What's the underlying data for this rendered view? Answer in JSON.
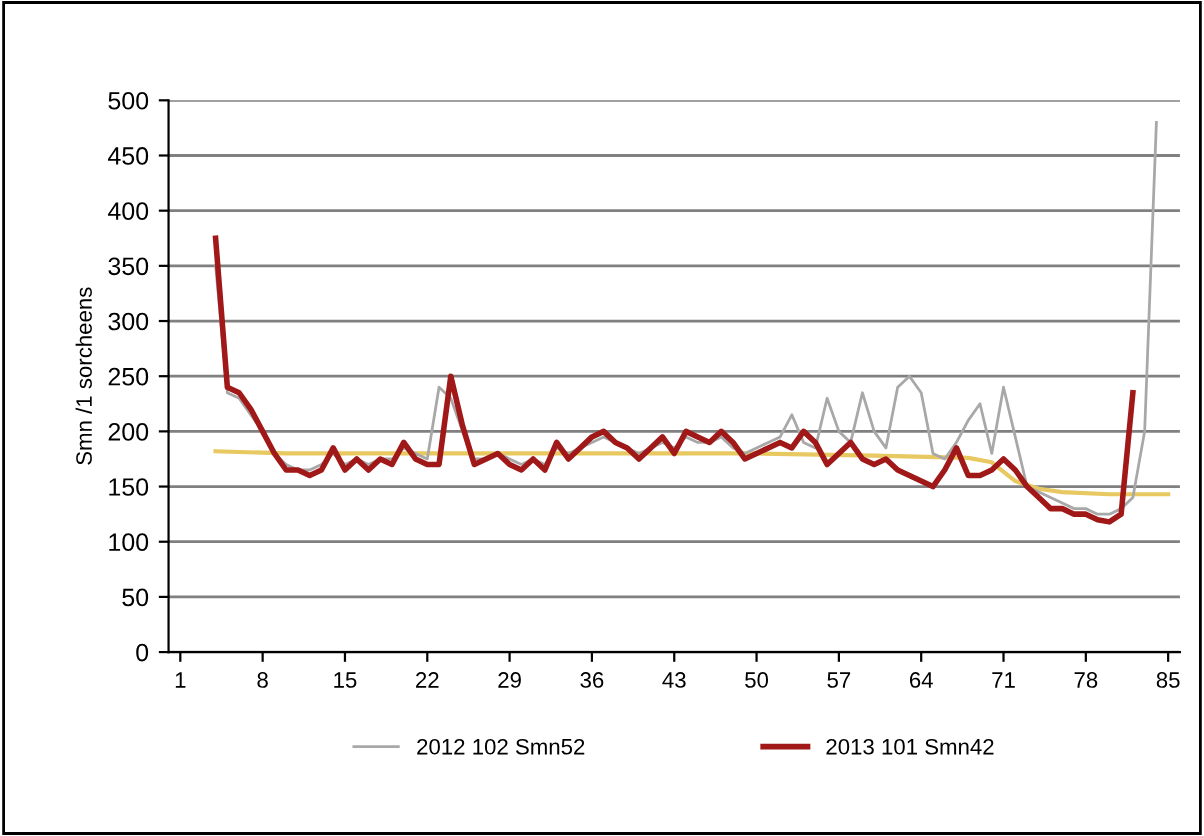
{
  "chart_data": {
    "type": "line",
    "ylabel": "Smn /1 sorcheens",
    "xlim": [
      0,
      86
    ],
    "xticks": [
      1,
      8,
      15,
      22,
      29,
      36,
      43,
      50,
      57,
      64,
      71,
      78,
      85
    ],
    "ylim": [
      0,
      500
    ],
    "yticks": [
      0,
      50,
      100,
      150,
      200,
      250,
      300,
      350,
      400,
      450,
      500
    ],
    "grid": "y",
    "legend": "bottom",
    "marker": "none",
    "line_style": "solid",
    "series": [
      {
        "name": "2012 102 Smn52",
        "color": "#a8a8a8",
        "x": [
          4,
          5,
          6,
          7,
          8,
          9,
          10,
          11,
          12,
          13,
          14,
          15,
          16,
          17,
          18,
          19,
          20,
          21,
          22,
          23,
          24,
          25,
          26,
          27,
          28,
          29,
          30,
          31,
          32,
          33,
          34,
          35,
          36,
          37,
          38,
          39,
          40,
          41,
          42,
          43,
          44,
          45,
          46,
          47,
          48,
          49,
          50,
          51,
          52,
          53,
          54,
          55,
          56,
          57,
          58,
          59,
          60,
          61,
          62,
          63,
          64,
          65,
          66,
          67,
          68,
          69,
          70,
          71,
          72,
          73,
          74,
          75,
          76,
          77,
          78,
          79,
          80,
          81,
          82,
          83,
          84
        ],
        "values": [
          350,
          235,
          230,
          215,
          200,
          180,
          170,
          165,
          165,
          170,
          180,
          170,
          175,
          170,
          175,
          175,
          185,
          180,
          175,
          240,
          230,
          200,
          175,
          175,
          180,
          175,
          170,
          175,
          170,
          185,
          180,
          185,
          190,
          195,
          190,
          185,
          180,
          185,
          190,
          185,
          195,
          190,
          190,
          195,
          185,
          180,
          185,
          190,
          195,
          215,
          190,
          185,
          230,
          200,
          190,
          235,
          200,
          185,
          240,
          250,
          235,
          180,
          175,
          190,
          210,
          225,
          180,
          240,
          195,
          150,
          145,
          140,
          135,
          130,
          130,
          125,
          125,
          130,
          140,
          200,
          480
        ]
      },
      {
        "name": "2013 101 Smn42",
        "color": "#a01818",
        "x": [
          4,
          5,
          6,
          7,
          8,
          9,
          10,
          11,
          12,
          13,
          14,
          15,
          16,
          17,
          18,
          19,
          20,
          21,
          22,
          23,
          24,
          25,
          26,
          27,
          28,
          29,
          30,
          31,
          32,
          33,
          34,
          35,
          36,
          37,
          38,
          39,
          40,
          41,
          42,
          43,
          44,
          45,
          46,
          47,
          48,
          49,
          50,
          51,
          52,
          53,
          54,
          55,
          56,
          57,
          58,
          59,
          60,
          61,
          62,
          63,
          64,
          65,
          66,
          67,
          68,
          69,
          70,
          71,
          72,
          73,
          74,
          75,
          76,
          77,
          78,
          79,
          80,
          81,
          82
        ],
        "values": [
          375,
          240,
          235,
          220,
          200,
          180,
          165,
          165,
          160,
          165,
          185,
          165,
          175,
          165,
          175,
          170,
          190,
          175,
          170,
          170,
          250,
          205,
          170,
          175,
          180,
          170,
          165,
          175,
          165,
          190,
          175,
          185,
          195,
          200,
          190,
          185,
          175,
          185,
          195,
          180,
          200,
          195,
          190,
          200,
          190,
          175,
          180,
          185,
          190,
          185,
          200,
          190,
          170,
          180,
          190,
          175,
          170,
          175,
          165,
          160,
          155,
          150,
          165,
          185,
          160,
          160,
          165,
          175,
          165,
          150,
          140,
          130,
          130,
          125,
          125,
          120,
          118,
          125,
          235
        ]
      },
      {
        "color": "#e8c860",
        "x": [
          4,
          10,
          20,
          30,
          40,
          50,
          60,
          68,
          70,
          72,
          74,
          76,
          80,
          85
        ],
        "values": [
          182,
          180,
          180,
          180,
          180,
          180,
          178,
          176,
          172,
          155,
          148,
          145,
          143,
          143
        ]
      }
    ]
  }
}
